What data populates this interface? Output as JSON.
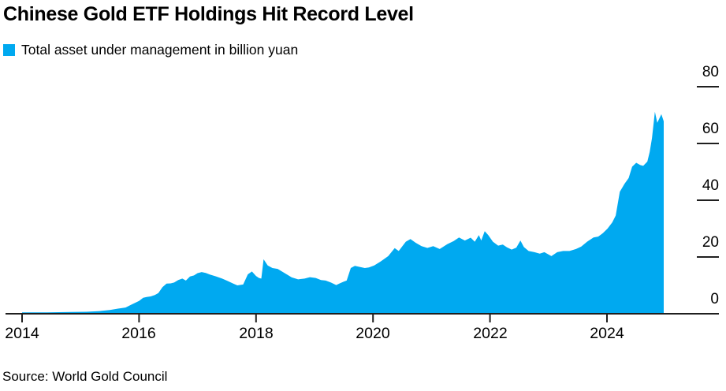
{
  "header": {
    "title": "Chinese Gold ETF Holdings Hit Record Level"
  },
  "legend": {
    "label": "Total asset under management in billion yuan"
  },
  "footer": {
    "source": "Source: World Gold Council"
  },
  "colors": {
    "area": "#00a9f0",
    "axis": "#1f1f1f",
    "text": "#000000",
    "background": "#ffffff"
  },
  "chart_data": {
    "type": "area",
    "title": "Chinese Gold ETF Holdings Hit Record Level",
    "series_name": "Total asset under management in billion yuan",
    "unit": "billion yuan",
    "source": "World Gold Council",
    "legend_position": "top-left",
    "grid": false,
    "y_axis_side": "right",
    "ylim": [
      0,
      80
    ],
    "y_ticks": [
      80,
      60,
      40,
      20,
      0
    ],
    "y_tick_labels": [
      "80",
      "60",
      "40",
      "20",
      "0"
    ],
    "x_ticks": [
      2014,
      2016,
      2018,
      2020,
      2022,
      2024
    ],
    "x_tick_labels": [
      "2014",
      "2016",
      "2018",
      "2020",
      "2022",
      "2024"
    ],
    "points": [
      [
        2014.0,
        0.5
      ],
      [
        2014.43,
        0.5
      ],
      [
        2014.83,
        0.6
      ],
      [
        2015.1,
        0.7
      ],
      [
        2015.3,
        0.9
      ],
      [
        2015.5,
        1.3
      ],
      [
        2015.64,
        1.8
      ],
      [
        2015.77,
        2.2
      ],
      [
        2015.86,
        3.1
      ],
      [
        2015.93,
        3.8
      ],
      [
        2016.0,
        4.5
      ],
      [
        2016.07,
        5.6
      ],
      [
        2016.13,
        5.9
      ],
      [
        2016.2,
        6.1
      ],
      [
        2016.27,
        6.6
      ],
      [
        2016.33,
        7.3
      ],
      [
        2016.4,
        9.4
      ],
      [
        2016.47,
        10.6
      ],
      [
        2016.54,
        10.7
      ],
      [
        2016.6,
        11.0
      ],
      [
        2016.67,
        11.9
      ],
      [
        2016.74,
        12.4
      ],
      [
        2016.8,
        11.7
      ],
      [
        2016.87,
        13.1
      ],
      [
        2016.94,
        13.5
      ],
      [
        2017.0,
        14.3
      ],
      [
        2017.07,
        14.7
      ],
      [
        2017.14,
        14.4
      ],
      [
        2017.21,
        13.8
      ],
      [
        2017.31,
        13.2
      ],
      [
        2017.42,
        12.4
      ],
      [
        2017.51,
        11.6
      ],
      [
        2017.61,
        10.6
      ],
      [
        2017.68,
        10.0
      ],
      [
        2017.78,
        10.3
      ],
      [
        2017.86,
        13.9
      ],
      [
        2017.93,
        14.9
      ],
      [
        2018.0,
        13.3
      ],
      [
        2018.05,
        12.6
      ],
      [
        2018.09,
        12.4
      ],
      [
        2018.13,
        19.2
      ],
      [
        2018.2,
        17.0
      ],
      [
        2018.28,
        16.1
      ],
      [
        2018.37,
        15.8
      ],
      [
        2018.49,
        14.3
      ],
      [
        2018.61,
        12.8
      ],
      [
        2018.72,
        12.1
      ],
      [
        2018.83,
        12.4
      ],
      [
        2018.92,
        12.9
      ],
      [
        2019.02,
        12.6
      ],
      [
        2019.11,
        11.9
      ],
      [
        2019.19,
        11.7
      ],
      [
        2019.28,
        11.0
      ],
      [
        2019.37,
        10.1
      ],
      [
        2019.43,
        10.7
      ],
      [
        2019.5,
        11.3
      ],
      [
        2019.55,
        11.7
      ],
      [
        2019.62,
        16.1
      ],
      [
        2019.69,
        16.9
      ],
      [
        2019.75,
        16.6
      ],
      [
        2019.86,
        16.1
      ],
      [
        2019.93,
        16.3
      ],
      [
        2020.02,
        17.0
      ],
      [
        2020.13,
        18.4
      ],
      [
        2020.26,
        20.3
      ],
      [
        2020.37,
        23.1
      ],
      [
        2020.44,
        22.1
      ],
      [
        2020.56,
        25.4
      ],
      [
        2020.64,
        26.3
      ],
      [
        2020.73,
        25.0
      ],
      [
        2020.83,
        23.8
      ],
      [
        2020.93,
        23.2
      ],
      [
        2021.03,
        23.8
      ],
      [
        2021.14,
        22.8
      ],
      [
        2021.27,
        24.5
      ],
      [
        2021.38,
        25.6
      ],
      [
        2021.47,
        26.9
      ],
      [
        2021.57,
        25.8
      ],
      [
        2021.67,
        26.8
      ],
      [
        2021.74,
        25.4
      ],
      [
        2021.81,
        27.7
      ],
      [
        2021.85,
        25.8
      ],
      [
        2021.91,
        29.1
      ],
      [
        2021.97,
        27.7
      ],
      [
        2022.05,
        25.4
      ],
      [
        2022.14,
        24.0
      ],
      [
        2022.22,
        24.4
      ],
      [
        2022.29,
        23.4
      ],
      [
        2022.37,
        22.6
      ],
      [
        2022.45,
        23.3
      ],
      [
        2022.52,
        25.8
      ],
      [
        2022.58,
        23.5
      ],
      [
        2022.66,
        22.1
      ],
      [
        2022.76,
        21.7
      ],
      [
        2022.85,
        21.2
      ],
      [
        2022.93,
        21.7
      ],
      [
        2023.05,
        20.3
      ],
      [
        2023.15,
        21.7
      ],
      [
        2023.25,
        22.1
      ],
      [
        2023.36,
        22.1
      ],
      [
        2023.47,
        22.8
      ],
      [
        2023.56,
        23.7
      ],
      [
        2023.66,
        25.4
      ],
      [
        2023.77,
        26.9
      ],
      [
        2023.85,
        27.2
      ],
      [
        2023.93,
        28.4
      ],
      [
        2024.01,
        30.0
      ],
      [
        2024.09,
        32.2
      ],
      [
        2024.15,
        34.6
      ],
      [
        2024.22,
        43.0
      ],
      [
        2024.3,
        45.8
      ],
      [
        2024.37,
        47.8
      ],
      [
        2024.43,
        51.8
      ],
      [
        2024.5,
        53.2
      ],
      [
        2024.57,
        52.4
      ],
      [
        2024.62,
        52.1
      ],
      [
        2024.69,
        53.6
      ],
      [
        2024.73,
        57.0
      ],
      [
        2024.77,
        61.9
      ],
      [
        2024.82,
        71.2
      ],
      [
        2024.86,
        67.3
      ],
      [
        2024.93,
        70.3
      ],
      [
        2024.97,
        67.8
      ]
    ]
  }
}
